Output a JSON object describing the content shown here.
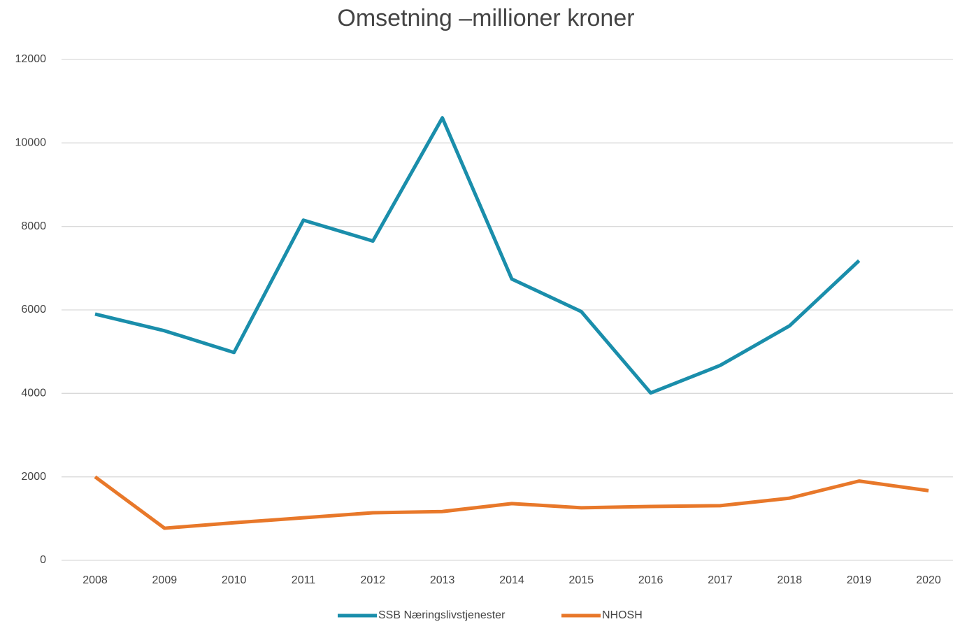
{
  "chart_data": {
    "type": "line",
    "title": "Omsetning –millioner kroner",
    "categories": [
      "2008",
      "2009",
      "2010",
      "2011",
      "2012",
      "2013",
      "2014",
      "2015",
      "2016",
      "2017",
      "2018",
      "2019",
      "2020"
    ],
    "series": [
      {
        "name": "SSB Næringslivstjenester",
        "color": "#1a8eab",
        "values": [
          5900,
          5500,
          4980,
          8150,
          7650,
          10600,
          6740,
          5960,
          4010,
          4670,
          5620,
          7180,
          null
        ]
      },
      {
        "name": "NHOSH",
        "color": "#e8782a",
        "values": [
          2000,
          770,
          900,
          1020,
          1140,
          1170,
          1360,
          1260,
          1290,
          1310,
          1490,
          1900,
          1670
        ]
      }
    ],
    "ylim": [
      0,
      12000
    ],
    "yticks": [
      0,
      2000,
      4000,
      6000,
      8000,
      10000,
      12000
    ],
    "grid": true,
    "legend": "bottom"
  }
}
